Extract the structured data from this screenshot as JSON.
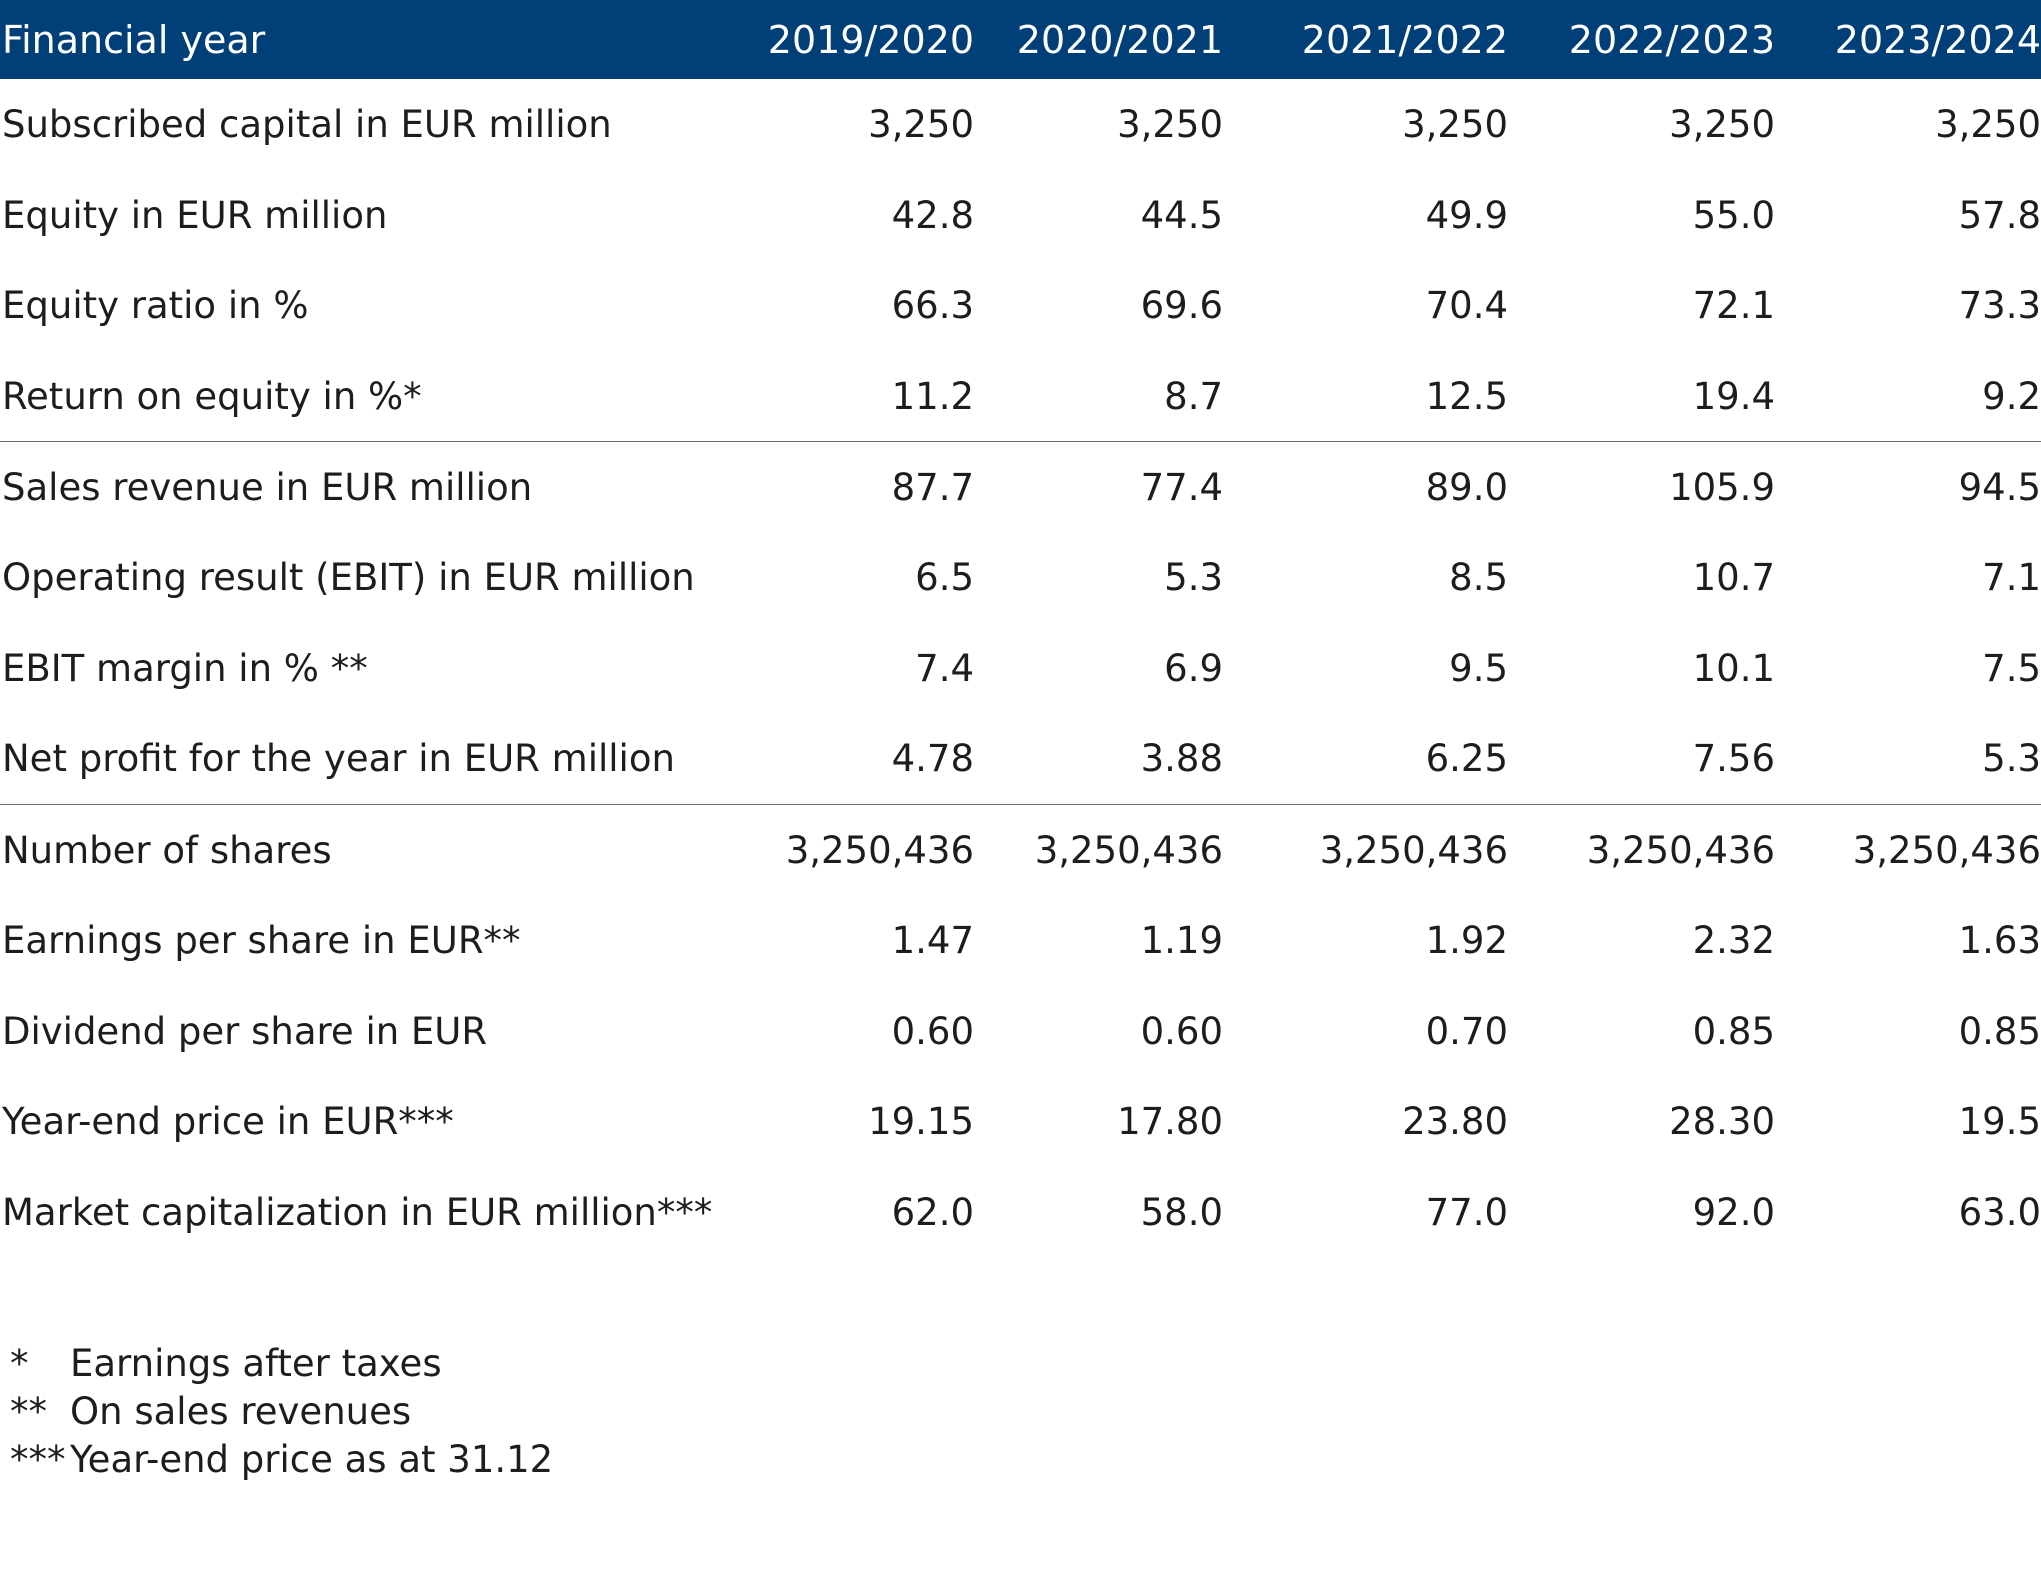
{
  "table": {
    "header_label": "Financial year",
    "years": [
      "2019/2020",
      "2020/2021",
      "2021/2022",
      "2022/2023",
      "2023/2024"
    ],
    "rows": [
      {
        "label": "Subscribed capital in EUR million",
        "values": [
          "3,250",
          "3,250",
          "3,250",
          "3,250",
          "3,250"
        ]
      },
      {
        "label": "Equity in EUR million",
        "values": [
          "42.8",
          "44.5",
          "49.9",
          "55.0",
          "57.8"
        ]
      },
      {
        "label": "Equity ratio in %",
        "values": [
          "66.3",
          "69.6",
          "70.4",
          "72.1",
          "73.3"
        ]
      },
      {
        "label": "Return on equity in %*",
        "values": [
          "11.2",
          "8.7",
          "12.5",
          "19.4",
          "9.2"
        ]
      },
      {
        "label": "Sales revenue in EUR million",
        "values": [
          "87.7",
          "77.4",
          "89.0",
          "105.9",
          "94.5"
        ]
      },
      {
        "label": "Operating result (EBIT) in EUR million",
        "values": [
          "6.5",
          "5.3",
          "8.5",
          "10.7",
          "7.1"
        ]
      },
      {
        "label": "EBIT margin in % **",
        "values": [
          "7.4",
          "6.9",
          "9.5",
          "10.1",
          "7.5"
        ]
      },
      {
        "label": "Net profit for the year in EUR million",
        "values": [
          "4.78",
          "3.88",
          "6.25",
          "7.56",
          "5.3"
        ]
      },
      {
        "label": "Number of shares",
        "values": [
          "3,250,436",
          "3,250,436",
          "3,250,436",
          "3,250,436",
          "3,250,436"
        ]
      },
      {
        "label": "Earnings per share in EUR**",
        "values": [
          "1.47",
          "1.19",
          "1.92",
          "2.32",
          "1.63"
        ]
      },
      {
        "label": "Dividend per share in EUR",
        "values": [
          "0.60",
          "0.60",
          "0.70",
          "0.85",
          "0.85"
        ]
      },
      {
        "label": "Year-end price in EUR***",
        "values": [
          "19.15",
          "17.80",
          "23.80",
          "28.30",
          "19.5"
        ]
      },
      {
        "label": "Market capitalization in EUR million***",
        "values": [
          "62.0",
          "58.0",
          "77.0",
          "92.0",
          "63.0"
        ]
      }
    ]
  },
  "footnotes": [
    {
      "mark": "*",
      "text": "Earnings after taxes"
    },
    {
      "mark": "**",
      "text": "On sales revenues"
    },
    {
      "mark": "***",
      "text": "Year-end price as at 31.12"
    }
  ],
  "colors": {
    "header_background": "#003f78",
    "header_text": "#ffffff",
    "body_text": "#1d1d1b",
    "divider": "#6b6b6b"
  }
}
